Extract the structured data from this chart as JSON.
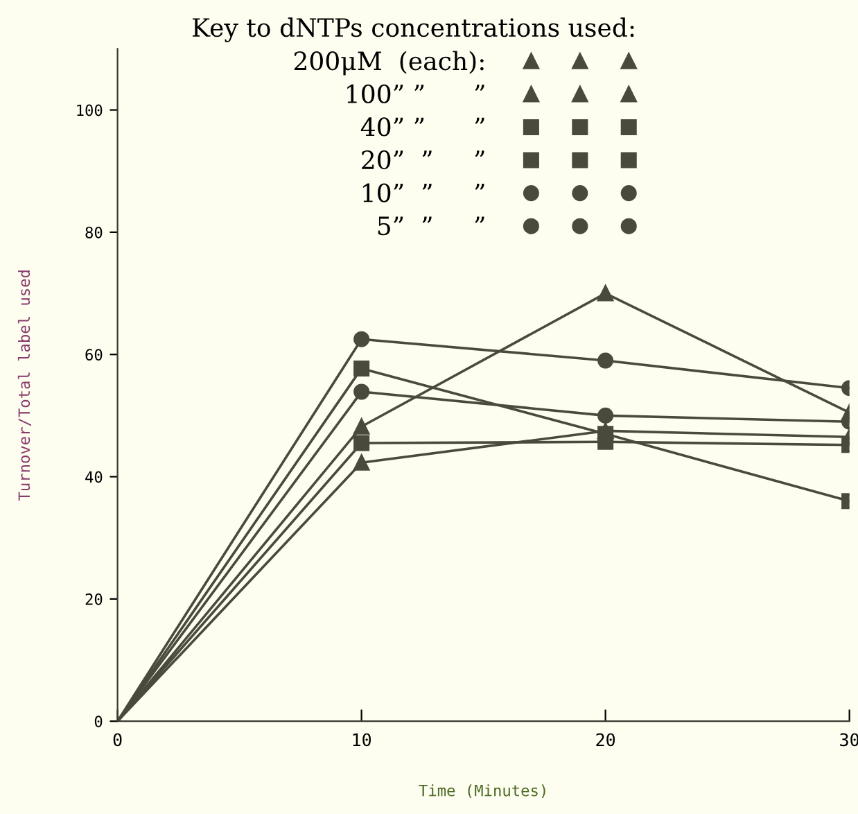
{
  "chart_data": {
    "type": "line",
    "legend_title": "Key to dNTPs concentrations used:",
    "xlabel": "Time (Minutes)",
    "ylabel": "Turnover/Total label used",
    "x": [
      0,
      10,
      20,
      30
    ],
    "series": [
      {
        "name": "200μM  (each):",
        "color": "#4a4a3c",
        "marker": "triangle",
        "values": [
          0,
          48.2,
          70,
          50.5
        ]
      },
      {
        "name": "100” ”      ”",
        "color": "#4a4a3c",
        "marker": "triangle",
        "values": [
          0,
          42.3,
          47.5,
          46.5
        ]
      },
      {
        "name": "40” ”      ”",
        "color": "#4a4a3c",
        "marker": "square",
        "values": [
          0,
          45.5,
          45.7,
          45.2
        ]
      },
      {
        "name": "20”  ”     ”",
        "color": "#4a4a3c",
        "marker": "square",
        "values": [
          0,
          57.7,
          47,
          36
        ]
      },
      {
        "name": "10”  ”     ”",
        "color": "#4a4a3c",
        "marker": "circle",
        "values": [
          0,
          53.9,
          50,
          49
        ]
      },
      {
        "name": "5”  ”     ”",
        "color": "#4a4a3c",
        "marker": "circle",
        "values": [
          0,
          62.5,
          59,
          54.5
        ]
      }
    ],
    "xlim": [
      0,
      30
    ],
    "xticks": [
      0,
      10,
      20,
      30
    ],
    "ylim": [
      0,
      110
    ],
    "yticks": [
      0,
      20,
      40,
      60,
      80,
      100
    ],
    "legend": "top",
    "grid": false,
    "line_style": "solid"
  }
}
